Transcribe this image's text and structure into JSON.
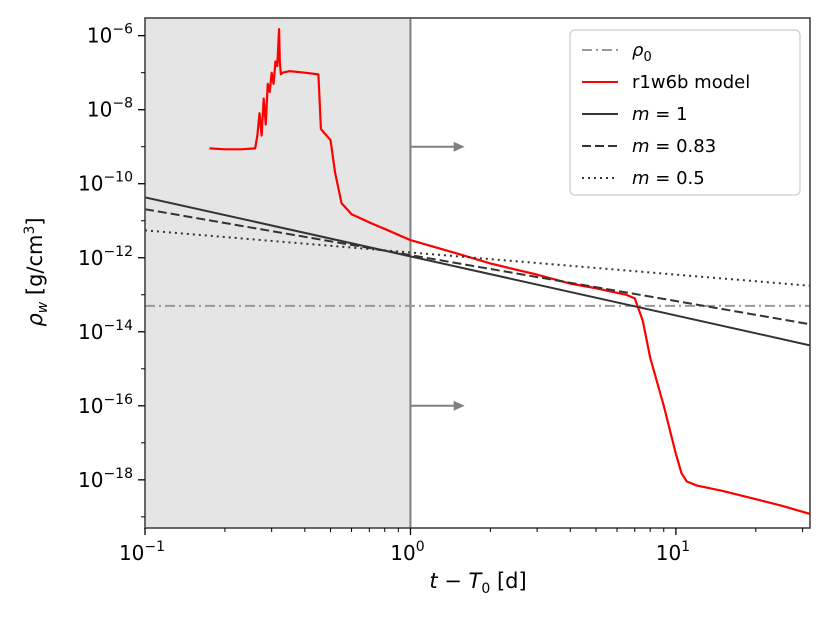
{
  "chart_data": {
    "type": "line",
    "xscale": "log",
    "yscale": "log",
    "xlim": [
      0.1,
      32
    ],
    "ylim": [
      5e-20,
      3e-06
    ],
    "xlabel": "t − T₀ [d]",
    "ylabel": "ρw [g/cm³]",
    "x_ticks": [
      {
        "value": 0.1,
        "base": "10",
        "exp": "−1"
      },
      {
        "value": 1,
        "base": "10",
        "exp": "0"
      },
      {
        "value": 10,
        "base": "10",
        "exp": "1"
      }
    ],
    "y_ticks": [
      {
        "value": 1e-06,
        "base": "10",
        "exp": "−6"
      },
      {
        "value": 1e-08,
        "base": "10",
        "exp": "−8"
      },
      {
        "value": 1e-10,
        "base": "10",
        "exp": "−10"
      },
      {
        "value": 1e-12,
        "base": "10",
        "exp": "−12"
      },
      {
        "value": 1e-14,
        "base": "10",
        "exp": "−14"
      },
      {
        "value": 1e-16,
        "base": "10",
        "exp": "−16"
      },
      {
        "value": 1e-18,
        "base": "10",
        "exp": "−18"
      }
    ],
    "shaded_region": {
      "x": [
        0.1,
        1
      ],
      "color": "#e5e5e5"
    },
    "vertical_line": {
      "x": 1,
      "color": "#808080"
    },
    "arrows": [
      {
        "y": 1e-09,
        "x_from": 1,
        "x_to": 1.6
      },
      {
        "y": 1e-16,
        "x_from": 1,
        "x_to": 1.6
      }
    ],
    "series": [
      {
        "name": "ρ0",
        "style": "dashdot",
        "color": "#999999",
        "x": [
          0.1,
          32
        ],
        "y": [
          5e-14,
          5e-14
        ]
      },
      {
        "name": "r1w6b model",
        "style": "solid",
        "color": "#ff0000",
        "x": [
          0.175,
          0.2,
          0.23,
          0.26,
          0.265,
          0.27,
          0.275,
          0.28,
          0.285,
          0.29,
          0.295,
          0.3,
          0.305,
          0.31,
          0.315,
          0.32,
          0.322,
          0.325,
          0.33,
          0.35,
          0.4,
          0.45,
          0.46,
          0.47,
          0.5,
          0.52,
          0.55,
          0.6,
          0.7,
          0.8,
          1.0,
          1.5,
          2.0,
          3.0,
          4.0,
          5.0,
          6.5,
          7.0,
          7.5,
          8.0,
          9.0,
          10.0,
          10.5,
          11.0,
          12.0,
          15.0,
          20.0,
          25.0,
          32.0
        ],
        "y": [
          9e-10,
          8.5e-10,
          8.5e-10,
          9e-10,
          2e-09,
          8e-09,
          2e-09,
          2e-08,
          4e-09,
          5e-08,
          3e-08,
          1e-07,
          5e-08,
          2e-07,
          1.5e-07,
          1.5e-06,
          2e-07,
          9e-08,
          1e-07,
          1.1e-07,
          1e-07,
          9e-08,
          3e-09,
          2.5e-09,
          1.5e-09,
          2e-10,
          3e-11,
          1.5e-11,
          9e-12,
          6e-12,
          3e-12,
          1.3e-12,
          7e-13,
          3.5e-13,
          2e-13,
          1.5e-13,
          1e-13,
          8e-14,
          2e-14,
          2e-15,
          1e-16,
          5e-18,
          1.5e-18,
          9e-19,
          7e-19,
          5e-19,
          3e-19,
          2e-19,
          1.2e-19
        ]
      },
      {
        "name": "m = 1",
        "style": "solid",
        "color": "#333333",
        "x": [
          0.1,
          32
        ],
        "y": [
          4.3e-11,
          4.3e-15
        ]
      },
      {
        "name": "m = 0.83",
        "style": "dashed",
        "color": "#333333",
        "x": [
          0.1,
          32
        ],
        "y": [
          2.05e-11,
          1.6e-14
        ]
      },
      {
        "name": "m = 0.5",
        "style": "dotted",
        "color": "#333333",
        "x": [
          0.1,
          32
        ],
        "y": [
          5.5e-12,
          1.75e-13
        ]
      }
    ],
    "legend": {
      "position": "top-right",
      "entries": [
        {
          "label": "ρ0",
          "style": "dashdot",
          "color": "#999999"
        },
        {
          "label": "r1w6b model",
          "style": "solid",
          "color": "#ff0000"
        },
        {
          "label": "m = 1",
          "style": "solid",
          "color": "#333333"
        },
        {
          "label": "m = 0.83",
          "style": "dashed",
          "color": "#333333"
        },
        {
          "label": "m = 0.5",
          "style": "dotted",
          "color": "#333333"
        }
      ]
    }
  }
}
